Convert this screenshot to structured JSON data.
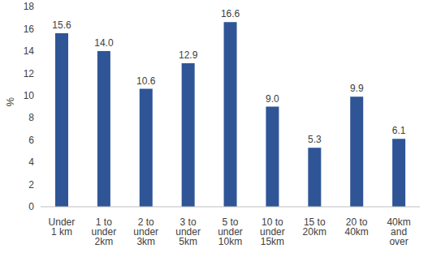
{
  "chart_data": {
    "type": "bar",
    "categories": [
      "Under 1 km",
      "1 to under 2km",
      "2 to under 3km",
      "3 to under 5km",
      "5 to under 10km",
      "10 to under 15km",
      "15 to 20km",
      "20 to 40km",
      "40km and over"
    ],
    "values": [
      15.6,
      14.0,
      10.6,
      12.9,
      16.6,
      9.0,
      5.3,
      9.9,
      6.1
    ],
    "value_labels": [
      "15.6",
      "14.0",
      "10.6",
      "12.9",
      "16.6",
      "9.0",
      "5.3",
      "9.9",
      "6.1"
    ],
    "color": "#2f5597",
    "y_label": "%",
    "ylim": [
      0,
      18
    ],
    "yticks": [
      0,
      2,
      4,
      6,
      8,
      10,
      12,
      14,
      16,
      18
    ],
    "grid": false,
    "data_labels": true
  }
}
